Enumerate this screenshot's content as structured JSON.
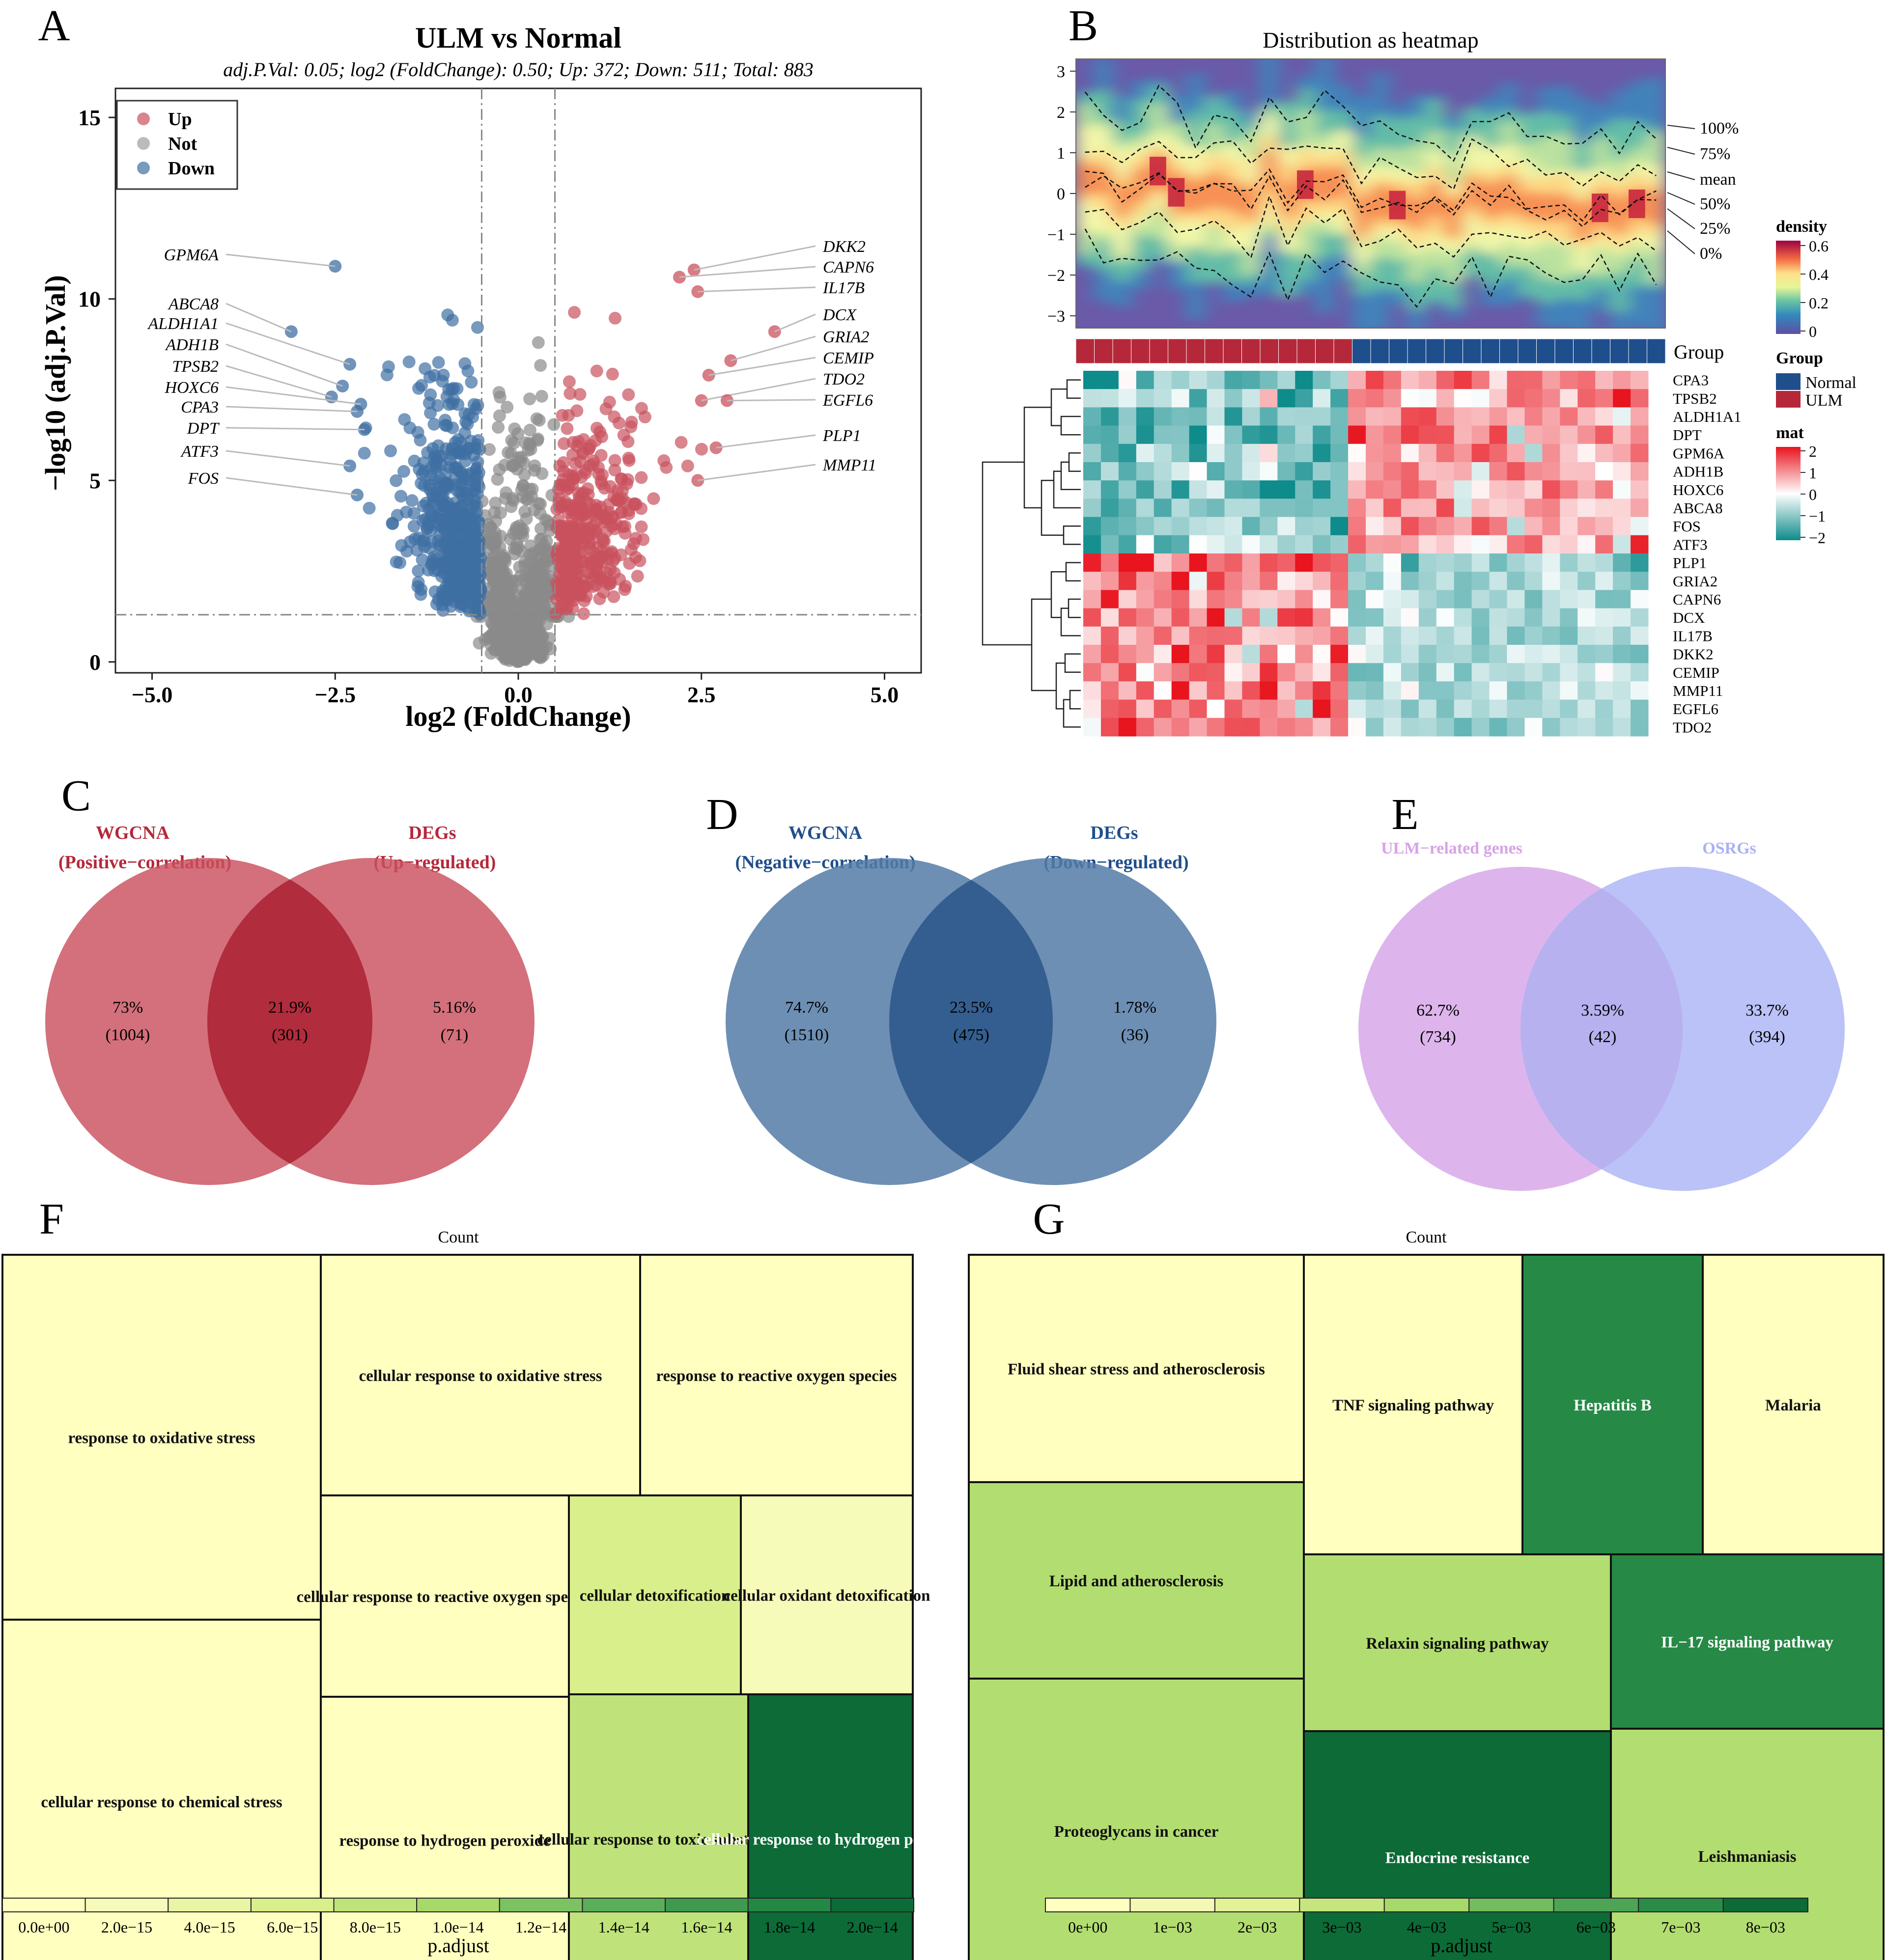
{
  "panels": {
    "a": "A",
    "b": "B",
    "c": "C",
    "d": "D",
    "e": "E",
    "f": "F",
    "g": "G"
  },
  "chart_data": [
    {
      "id": "A",
      "type": "scatter",
      "title": "ULM vs Normal",
      "subtitle": "adj.P.Val: 0.05; log2 (FoldChange): 0.50; Up: 372; Down: 511; Total: 883",
      "xlabel": "log2 (FoldChange)",
      "ylabel": "−log10 (adj.P.Val)",
      "xlim": [
        -5.5,
        5.5
      ],
      "ylim": [
        -0.3,
        15.8
      ],
      "xticks": [
        -5.0,
        -2.5,
        0.0,
        2.5,
        5.0
      ],
      "xtick_labels": [
        "−5.0",
        "−2.5",
        "0.0",
        "2.5",
        "5.0"
      ],
      "yticks": [
        0,
        5,
        10,
        15
      ],
      "ytick_labels": [
        "0",
        "5",
        "10",
        "15"
      ],
      "thresholds": {
        "fc": 0.5,
        "p": 1.3
      },
      "legend": [
        {
          "name": "Up",
          "color": "#c9515e"
        },
        {
          "name": "Not",
          "color": "#9e9e9e"
        },
        {
          "name": "Down",
          "color": "#3f6fa3"
        }
      ],
      "labeled_points": [
        {
          "gene": "GPM6A",
          "x": -2.5,
          "y": 10.9,
          "side": "left"
        },
        {
          "gene": "ABCA8",
          "x": -3.1,
          "y": 9.1,
          "side": "left"
        },
        {
          "gene": "ALDH1A1",
          "x": -2.3,
          "y": 8.2,
          "side": "left"
        },
        {
          "gene": "ADH1B",
          "x": -2.4,
          "y": 7.6,
          "side": "left"
        },
        {
          "gene": "TPSB2",
          "x": -2.55,
          "y": 7.3,
          "side": "left"
        },
        {
          "gene": "HOXC6",
          "x": -2.15,
          "y": 7.1,
          "side": "left"
        },
        {
          "gene": "CPA3",
          "x": -2.2,
          "y": 6.9,
          "side": "left"
        },
        {
          "gene": "DPT",
          "x": -2.1,
          "y": 6.4,
          "side": "left"
        },
        {
          "gene": "ATF3",
          "x": -2.3,
          "y": 5.4,
          "side": "left"
        },
        {
          "gene": "FOS",
          "x": -2.2,
          "y": 4.6,
          "side": "left"
        },
        {
          "gene": "DKK2",
          "x": 2.4,
          "y": 10.8,
          "side": "right"
        },
        {
          "gene": "CAPN6",
          "x": 2.2,
          "y": 10.6,
          "side": "right"
        },
        {
          "gene": "IL17B",
          "x": 2.45,
          "y": 10.2,
          "side": "right"
        },
        {
          "gene": "DCX",
          "x": 3.5,
          "y": 9.1,
          "side": "right"
        },
        {
          "gene": "GRIA2",
          "x": 2.9,
          "y": 8.3,
          "side": "right"
        },
        {
          "gene": "CEMIP",
          "x": 2.6,
          "y": 7.9,
          "side": "right"
        },
        {
          "gene": "TDO2",
          "x": 2.5,
          "y": 7.2,
          "side": "right"
        },
        {
          "gene": "EGFL6",
          "x": 2.85,
          "y": 7.2,
          "side": "right"
        },
        {
          "gene": "PLP1",
          "x": 2.7,
          "y": 5.9,
          "side": "right"
        },
        {
          "gene": "MMP11",
          "x": 2.45,
          "y": 5.0,
          "side": "right"
        }
      ]
    },
    {
      "id": "B",
      "type": "heatmap",
      "title": "Distribution as heatmap",
      "density_yticks": [
        "3",
        "2",
        "1",
        "0",
        "−1",
        "−2",
        "−3"
      ],
      "quantile_labels": [
        "100%",
        "75%",
        "mean",
        "50%",
        "25%",
        "0%"
      ],
      "group_label": "Group",
      "groups": [
        {
          "name": "Normal",
          "color": "#1f4e8c"
        },
        {
          "name": "ULM",
          "color": "#b5283a"
        }
      ],
      "density_legend": {
        "title": "density",
        "ticks": [
          "0.6",
          "0.4",
          "0.2",
          "0"
        ]
      },
      "mat_legend": {
        "title": "mat",
        "ticks": [
          "2",
          "1",
          "0",
          "−1",
          "−2"
        ]
      },
      "genes_down": [
        "CPA3",
        "TPSB2",
        "ALDH1A1",
        "DPT",
        "GPM6A",
        "ADH1B",
        "HOXC6",
        "ABCA8",
        "FOS",
        "ATF3"
      ],
      "genes_up": [
        "PLP1",
        "GRIA2",
        "CAPN6",
        "DCX",
        "IL17B",
        "DKK2",
        "CEMIP",
        "MMP11",
        "EGFL6",
        "TDO2"
      ],
      "n_ulm": 15,
      "n_normal": 17
    },
    {
      "id": "C",
      "type": "venn",
      "left": {
        "line1": "WGCNA",
        "line2": "(Positive−correlation)",
        "pct": "73%",
        "count": "(1004)"
      },
      "right": {
        "line1": "DEGs",
        "line2": "(Up−regulated)",
        "pct": "5.16%",
        "count": "(71)"
      },
      "overlap": {
        "pct": "21.9%",
        "count": "(301)"
      },
      "colors": {
        "label": "#b5283a",
        "fill": "#c9515e",
        "inter": "#b12c3c"
      }
    },
    {
      "id": "D",
      "type": "venn",
      "left": {
        "line1": "WGCNA",
        "line2": "(Negative−correlation)",
        "pct": "74.7%",
        "count": "(1510)"
      },
      "right": {
        "line1": "DEGs",
        "line2": "(Down−regulated)",
        "pct": "1.78%",
        "count": "(36)"
      },
      "overlap": {
        "pct": "23.5%",
        "count": "(475)"
      },
      "colors": {
        "label": "#1f4e8c",
        "fill": "#547ba7",
        "inter": "#335e8f"
      }
    },
    {
      "id": "E",
      "type": "venn",
      "left": {
        "line1": "ULM−related genes",
        "pct": "62.7%",
        "count": "(734)"
      },
      "right": {
        "line1": "OSRGs",
        "pct": "33.7%",
        "count": "(394)"
      },
      "overlap": {
        "pct": "3.59%",
        "count": "(42)"
      },
      "colors": {
        "label_left": "#d7a3e6",
        "label_right": "#a9b1f4",
        "left": "#ddb5ec",
        "right": "#b3bbf6",
        "inter": "#b7b1ef"
      }
    },
    {
      "id": "F",
      "type": "treemap",
      "size_label": "Count",
      "legend_title": "p.adjust",
      "legend_ticks": [
        "0.0e+00",
        "2.0e−15",
        "4.0e−15",
        "6.0e−15",
        "8.0e−15",
        "1.0e−14",
        "1.2e−14",
        "1.4e−14",
        "1.6e−14",
        "1.8e−14",
        "2.0e−14"
      ],
      "tiles": [
        {
          "label": "response to oxidative stress",
          "p_adjust": 0.0
        },
        {
          "label": "cellular response to chemical stress",
          "p_adjust": 0.0
        },
        {
          "label": "cellular response to oxidative stress",
          "p_adjust": 0.0
        },
        {
          "label": "response to reactive oxygen species",
          "p_adjust": 0.0
        },
        {
          "label": "cellular response to reactive oxygen species",
          "p_adjust": 0.0
        },
        {
          "label": "cellular detoxification",
          "p_adjust": 6e-15
        },
        {
          "label": "cellular oxidant detoxification",
          "p_adjust": 2e-15
        },
        {
          "label": "response to hydrogen peroxide",
          "p_adjust": 0.0
        },
        {
          "label": "cellular response to toxic substance",
          "p_adjust": 8e-15
        },
        {
          "label": "cellular response to hydrogen peroxide",
          "p_adjust": 2e-14
        }
      ]
    },
    {
      "id": "G",
      "type": "treemap",
      "size_label": "Count",
      "legend_title": "p.adjust",
      "legend_ticks": [
        "0e+00",
        "1e−03",
        "2e−03",
        "3e−03",
        "4e−03",
        "5e−03",
        "6e−03",
        "7e−03",
        "8e−03"
      ],
      "tiles": [
        {
          "label": "Fluid shear stress and atherosclerosis",
          "p_adjust": 0.0
        },
        {
          "label": "Lipid and atherosclerosis",
          "p_adjust": 0.0037
        },
        {
          "label": "Proteoglycans in cancer",
          "p_adjust": 0.0037
        },
        {
          "label": "TNF signaling pathway",
          "p_adjust": 0.0
        },
        {
          "label": "Hepatitis B",
          "p_adjust": 0.0073
        },
        {
          "label": "Malaria",
          "p_adjust": 0.0
        },
        {
          "label": "Relaxin signaling pathway",
          "p_adjust": 0.0037
        },
        {
          "label": "IL−17 signaling pathway",
          "p_adjust": 0.0073
        },
        {
          "label": "Endocrine resistance",
          "p_adjust": 0.0082
        },
        {
          "label": "Leishmaniasis",
          "p_adjust": 0.0037
        }
      ]
    }
  ]
}
